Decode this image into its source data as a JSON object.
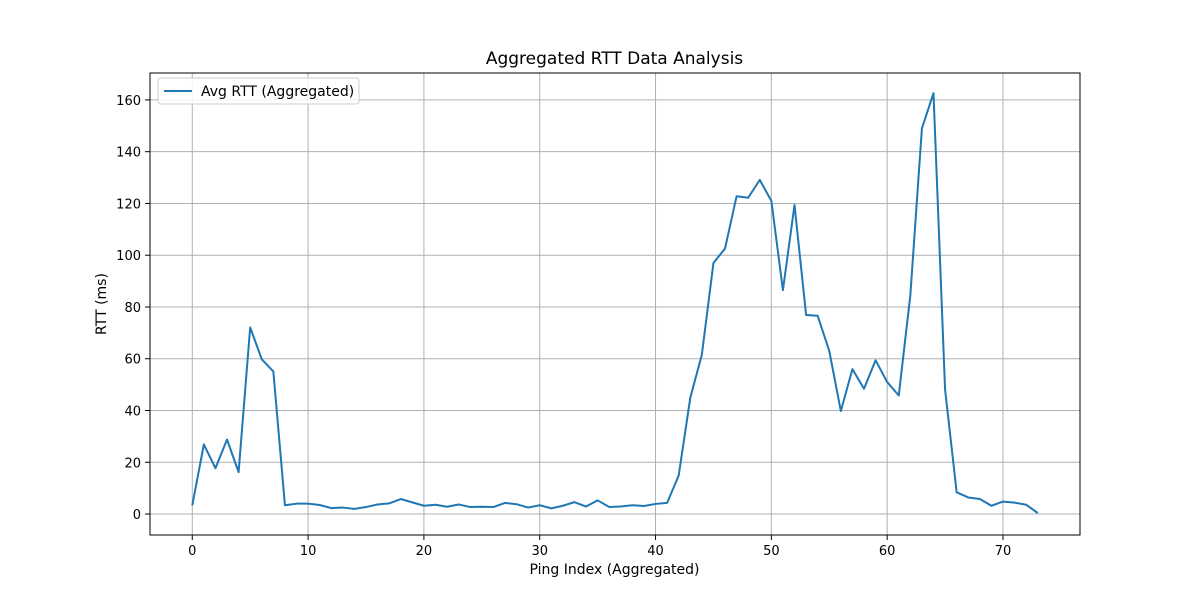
{
  "chart_data": {
    "type": "line",
    "title": "Aggregated RTT Data Analysis",
    "xlabel": "Ping Index (Aggregated)",
    "ylabel": "RTT (ms)",
    "xlim": [
      -3.65,
      76.65
    ],
    "ylim": [
      -8.1,
      170.4
    ],
    "xticks": [
      0,
      10,
      20,
      30,
      40,
      50,
      60,
      70
    ],
    "yticks": [
      0,
      20,
      40,
      60,
      80,
      100,
      120,
      140,
      160
    ],
    "grid": true,
    "legend_position": "top-left",
    "colors": {
      "series": "#1f77b4",
      "grid": "#b0b0b0"
    },
    "series": [
      {
        "name": "Avg RTT (Aggregated)",
        "x": [
          0,
          1,
          2,
          3,
          4,
          5,
          6,
          7,
          8,
          9,
          10,
          11,
          12,
          13,
          14,
          15,
          16,
          17,
          18,
          19,
          20,
          21,
          22,
          23,
          24,
          25,
          26,
          27,
          28,
          29,
          30,
          31,
          32,
          33,
          34,
          35,
          36,
          37,
          38,
          39,
          40,
          41,
          42,
          43,
          44,
          45,
          46,
          47,
          48,
          49,
          50,
          51,
          52,
          53,
          54,
          55,
          56,
          57,
          58,
          59,
          60,
          61,
          62,
          63,
          64,
          65,
          66,
          67,
          68,
          69,
          70,
          71,
          72,
          73
        ],
        "values": [
          3.3,
          26.9,
          17.7,
          28.8,
          16.2,
          72.1,
          59.8,
          55.1,
          3.4,
          4.0,
          4.0,
          3.5,
          2.3,
          2.5,
          2.0,
          2.7,
          3.7,
          4.1,
          5.8,
          4.5,
          3.2,
          3.6,
          2.8,
          3.7,
          2.7,
          2.8,
          2.7,
          4.3,
          3.8,
          2.5,
          3.4,
          2.2,
          3.2,
          4.6,
          2.9,
          5.3,
          2.7,
          2.9,
          3.4,
          3.1,
          3.9,
          4.3,
          14.9,
          44.9,
          61.6,
          97.0,
          102.6,
          122.8,
          122.2,
          129.1,
          121.0,
          86.5,
          119.4,
          76.9,
          76.6,
          63.0,
          39.8,
          56.0,
          48.4,
          59.4,
          51.0,
          45.8,
          84.5,
          149.0,
          162.6,
          48.1,
          8.4,
          6.4,
          5.8,
          3.2,
          4.8,
          4.4,
          3.6,
          0.4
        ]
      }
    ]
  }
}
